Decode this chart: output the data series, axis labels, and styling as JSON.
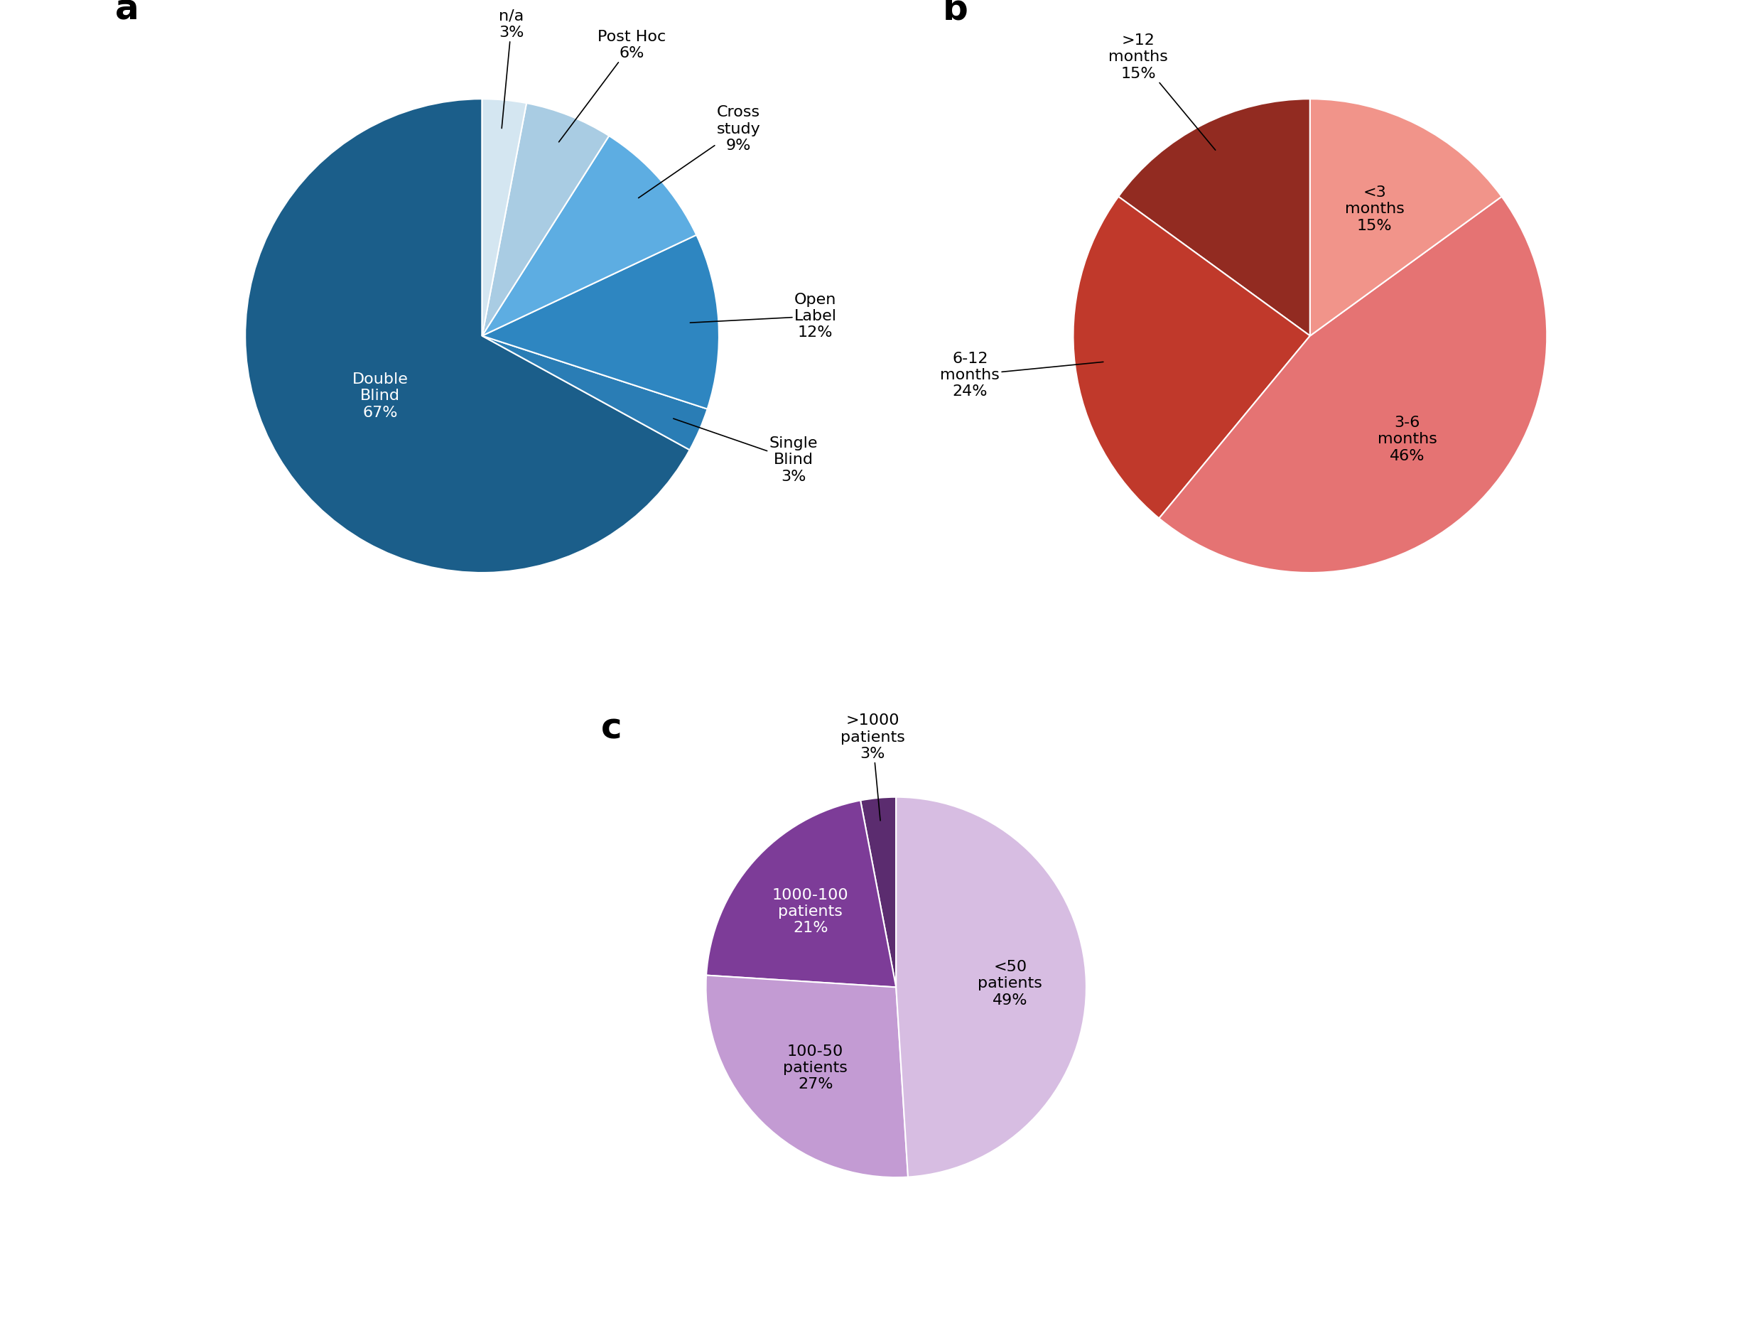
{
  "chart_a": {
    "label": "a",
    "slices": [
      {
        "label": "Double\nBlind\n67%",
        "value": 67,
        "color": "#1b5e8a",
        "text_color": "white",
        "inside": true,
        "r_text": 0.5
      },
      {
        "label": "Single\nBlind\n3%",
        "value": 3,
        "color": "#2a7db5",
        "text_color": "black",
        "inside": false,
        "r_text": 1.32
      },
      {
        "label": "Open\nLabel\n12%",
        "value": 12,
        "color": "#2e86c1",
        "text_color": "black",
        "inside": false,
        "r_text": 1.32
      },
      {
        "label": "Cross\nstudy\n9%",
        "value": 9,
        "color": "#5dade2",
        "text_color": "black",
        "inside": false,
        "r_text": 1.32
      },
      {
        "label": "Post Hoc\n6%",
        "value": 6,
        "color": "#a9cce3",
        "text_color": "black",
        "inside": false,
        "r_text": 1.32
      },
      {
        "label": "n/a\n3%",
        "value": 3,
        "color": "#d4e6f1",
        "text_color": "black",
        "inside": false,
        "r_text": 1.32
      }
    ],
    "startangle": 90
  },
  "chart_b": {
    "label": "b",
    "slices": [
      {
        "label": ">12\nmonths\n15%",
        "value": 15,
        "color": "#922b21",
        "text_color": "black",
        "inside": false,
        "r_text": 1.32
      },
      {
        "label": "6-12\nmonths\n24%",
        "value": 24,
        "color": "#c0392b",
        "text_color": "black",
        "inside": false,
        "r_text": 1.32
      },
      {
        "label": "3-6\nmonths\n46%",
        "value": 46,
        "color": "#e57373",
        "text_color": "black",
        "inside": true,
        "r_text": 0.6
      },
      {
        "label": "<3\nmonths\n15%",
        "value": 15,
        "color": "#f1948a",
        "text_color": "black",
        "inside": true,
        "r_text": 0.6
      }
    ],
    "startangle": 90
  },
  "chart_c": {
    "label": "c",
    "slices": [
      {
        "label": ">1000\npatients\n3%",
        "value": 3,
        "color": "#5b2c6f",
        "text_color": "black",
        "inside": false,
        "r_text": 1.32
      },
      {
        "label": "1000-100\npatients\n21%",
        "value": 21,
        "color": "#7d3c98",
        "text_color": "white",
        "inside": true,
        "r_text": 0.6
      },
      {
        "label": "100-50\npatients\n27%",
        "value": 27,
        "color": "#c39bd3",
        "text_color": "black",
        "inside": true,
        "r_text": 0.6
      },
      {
        "label": "<50\npatients\n49%",
        "value": 49,
        "color": "#d7bde2",
        "text_color": "black",
        "inside": true,
        "r_text": 0.6
      }
    ],
    "startangle": 90
  },
  "background_color": "#ffffff",
  "font_size": 16,
  "panel_font_size": 36
}
